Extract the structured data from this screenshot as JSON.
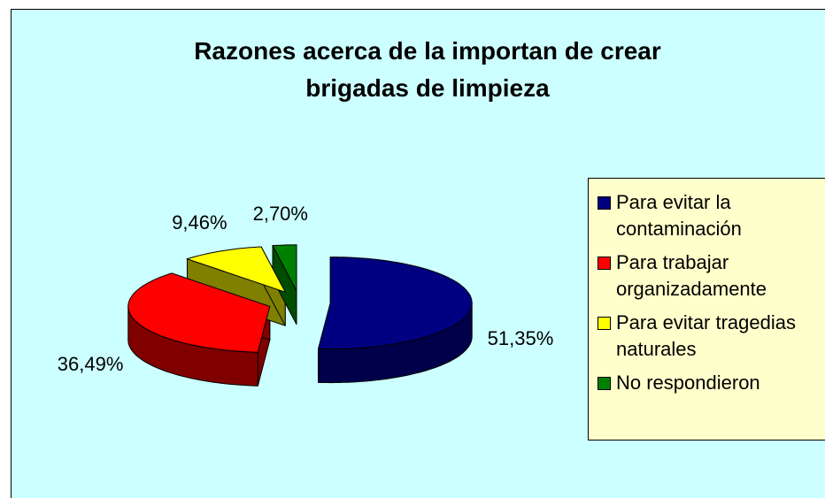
{
  "chart_data": {
    "type": "pie3d",
    "title": "Razones acerca de la importan de crear brigadas de limpieza",
    "categories": [
      "Para evitar la contaminación",
      "Para trabajar organizadamente",
      "Para evitar tragedias naturales",
      "No respondieron"
    ],
    "values": [
      51.35,
      36.49,
      9.46,
      2.7
    ],
    "value_labels": [
      "51,35%",
      "36,49%",
      "9,46%",
      "2,70%"
    ],
    "colors": [
      "#000080",
      "#ff0000",
      "#ffff00",
      "#008000"
    ],
    "side_colors": [
      "#00004a",
      "#800000",
      "#808000",
      "#004d00"
    ]
  }
}
